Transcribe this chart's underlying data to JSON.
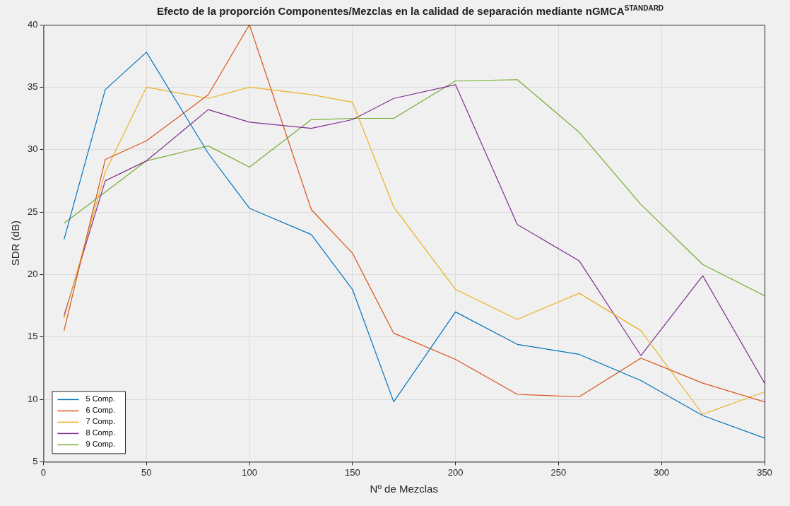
{
  "chart_data": {
    "type": "line",
    "title": "Efecto de la proporción Componentes/Mezclas en la calidad de separación mediante nGMCA$^{STANDARD}$",
    "xlabel": "Nº de Mezclas",
    "ylabel": "SDR (dB)",
    "x": [
      10,
      30,
      50,
      80,
      100,
      130,
      150,
      170,
      200,
      230,
      260,
      290,
      320,
      350
    ],
    "series": [
      {
        "name": "5 Comp.",
        "color": "#0072bd",
        "values": [
          22.8,
          34.8,
          37.8,
          29.7,
          25.3,
          23.2,
          18.8,
          9.8,
          17.0,
          14.4,
          13.6,
          11.5,
          8.7,
          6.9
        ]
      },
      {
        "name": "6 Comp.",
        "color": "#d95319",
        "values": [
          15.5,
          29.2,
          30.7,
          34.4,
          40.0,
          25.2,
          21.7,
          15.3,
          13.2,
          10.4,
          10.2,
          13.3,
          11.3,
          9.8
        ]
      },
      {
        "name": "7 Comp.",
        "color": "#edb120",
        "values": [
          16.5,
          28.2,
          35.0,
          34.1,
          35.0,
          34.4,
          33.8,
          25.4,
          18.8,
          16.4,
          18.5,
          15.5,
          8.8,
          10.6
        ]
      },
      {
        "name": "8 Comp.",
        "color": "#7e2f8e",
        "values": [
          16.7,
          27.5,
          29.1,
          33.2,
          32.2,
          31.7,
          32.4,
          34.1,
          35.2,
          24.0,
          21.1,
          13.5,
          19.9,
          11.3
        ]
      },
      {
        "name": "9 Comp.",
        "color": "#77ac30",
        "values": [
          24.1,
          26.6,
          29.1,
          30.3,
          28.6,
          32.4,
          32.5,
          32.5,
          35.5,
          35.6,
          31.4,
          25.6,
          20.8,
          18.3
        ]
      }
    ],
    "xlim": [
      0,
      350
    ],
    "xticks": [
      0,
      50,
      100,
      150,
      200,
      250,
      300,
      350
    ],
    "ylim": [
      5,
      40
    ],
    "yticks": [
      5,
      10,
      15,
      20,
      25,
      30,
      35,
      40
    ],
    "grid": true,
    "legend": "bottom left",
    "marker": "none",
    "line_style": "solid"
  }
}
